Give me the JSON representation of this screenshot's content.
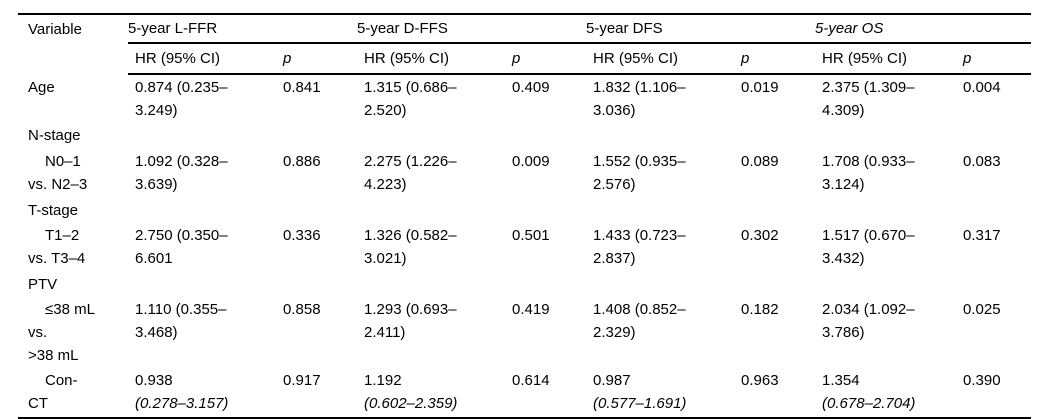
{
  "table": {
    "col1_header": "Variable",
    "sub_headers": {
      "hr": "HR (95% CI)",
      "p": "p"
    },
    "groups": [
      {
        "label": "5-year L-FFR"
      },
      {
        "label": "5-year D-FFS"
      },
      {
        "label": "5-year DFS"
      },
      {
        "label": "5-year OS"
      }
    ],
    "rows": [
      {
        "var1": "Age",
        "c0": {
          "hr1": "0.874 (0.235–",
          "hr2": "3.249)",
          "p": "0.841"
        },
        "c1": {
          "hr1": "1.315 (0.686–",
          "hr2": "2.520)",
          "p": "0.409"
        },
        "c2": {
          "hr1": "1.832 (1.106–",
          "hr2": "3.036)",
          "p": "0.019"
        },
        "c3": {
          "hr1": "2.375 (1.309–",
          "hr2": "4.309)",
          "p": "0.004"
        }
      },
      {
        "var1": "N-stage"
      },
      {
        "var1": "N0–1",
        "var2": "vs. N2–3",
        "c0": {
          "hr1": "1.092 (0.328–",
          "hr2": "3.639)",
          "p": "0.886"
        },
        "c1": {
          "hr1": "2.275 (1.226–",
          "hr2": "4.223)",
          "p": "0.009"
        },
        "c2": {
          "hr1": "1.552 (0.935–",
          "hr2": "2.576)",
          "p": "0.089"
        },
        "c3": {
          "hr1": "1.708 (0.933–",
          "hr2": "3.124)",
          "p": "0.083"
        }
      },
      {
        "var1": "T-stage"
      },
      {
        "var1": "T1–2",
        "var2": "vs. T3–4",
        "c0": {
          "hr1": "2.750 (0.350–",
          "hr2": "6.601",
          "p": "0.336"
        },
        "c1": {
          "hr1": "1.326 (0.582–",
          "hr2": "3.021)",
          "p": "0.501"
        },
        "c2": {
          "hr1": "1.433 (0.723–",
          "hr2": "2.837)",
          "p": "0.302"
        },
        "c3": {
          "hr1": "1.517 (0.670–",
          "hr2": "3.432)",
          "p": "0.317"
        }
      },
      {
        "var1": "PTV"
      },
      {
        "var1": "≤38 mL",
        "var2": "vs.",
        "var3": ">38 mL",
        "c0": {
          "hr1": "1.110 (0.355–",
          "hr2": "3.468)",
          "p": "0.858"
        },
        "c1": {
          "hr1": "1.293 (0.693–",
          "hr2": "2.411)",
          "p": "0.419"
        },
        "c2": {
          "hr1": "1.408 (0.852–",
          "hr2": "2.329)",
          "p": "0.182"
        },
        "c3": {
          "hr1": "2.034 (1.092–",
          "hr2": "3.786)",
          "p": "0.025"
        }
      },
      {
        "var1": "Con-",
        "var2": "CT",
        "c0": {
          "hr1": "0.938",
          "hr2": "(0.278–3.157)",
          "p": "0.917"
        },
        "c1": {
          "hr1": "1.192",
          "hr2": "(0.602–2.359)",
          "p": "0.614"
        },
        "c2": {
          "hr1": "0.987",
          "hr2": "(0.577–1.691)",
          "p": "0.963"
        },
        "c3": {
          "hr1": "1.354",
          "hr2": "(0.678–2.704)",
          "p": "0.390"
        }
      }
    ]
  }
}
